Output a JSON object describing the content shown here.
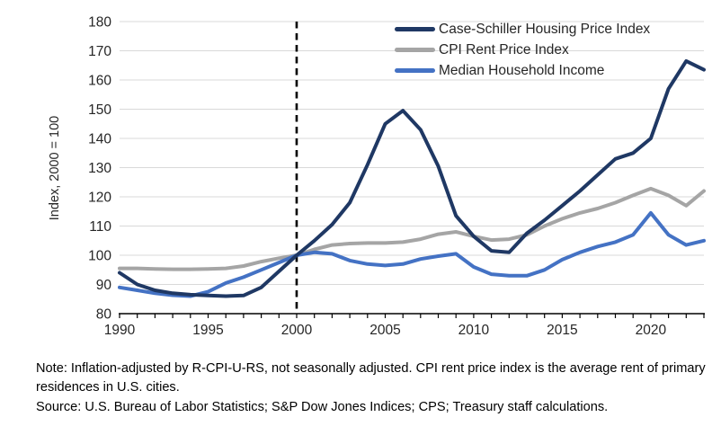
{
  "chart_data": {
    "type": "line",
    "title": "",
    "xlabel": "",
    "ylabel": "Index, 2000 = 100",
    "xlim": [
      1990,
      2023
    ],
    "ylim": [
      80,
      180
    ],
    "x_ticks": [
      1990,
      1995,
      2000,
      2005,
      2010,
      2015,
      2020
    ],
    "x_minor_tick_interval": 1,
    "y_ticks": [
      80,
      90,
      100,
      110,
      120,
      130,
      140,
      150,
      160,
      170,
      180
    ],
    "grid": "horizontal",
    "gridline_color": "#d9d9d9",
    "axis_color": "#000000",
    "reference_line": {
      "x": 2000,
      "style": "dashed",
      "color": "#000000"
    },
    "legend_position": "top-right",
    "years": [
      1990,
      1991,
      1992,
      1993,
      1994,
      1995,
      1996,
      1997,
      1998,
      1999,
      2000,
      2001,
      2002,
      2003,
      2004,
      2005,
      2006,
      2007,
      2008,
      2009,
      2010,
      2011,
      2012,
      2013,
      2014,
      2015,
      2016,
      2017,
      2018,
      2019,
      2020,
      2021,
      2022,
      2023
    ],
    "series": [
      {
        "id": "case-schiller",
        "name": "Case-Schiller Housing Price Index",
        "color": "#1f3864",
        "values": [
          94,
          90,
          88,
          87,
          86.5,
          86.2,
          86,
          86.2,
          89,
          94.5,
          100,
          105,
          110.5,
          118,
          131,
          145,
          149.5,
          143,
          130.5,
          113.5,
          106.5,
          101.5,
          101,
          107.5,
          112,
          117,
          122,
          127.5,
          133,
          135,
          140,
          157,
          166.5,
          163.5
        ]
      },
      {
        "id": "cpi-rent",
        "name": "CPI Rent Price Index",
        "color": "#a5a5a5",
        "values": [
          95.5,
          95.5,
          95.3,
          95.2,
          95.2,
          95.3,
          95.5,
          96.3,
          97.8,
          99,
          100,
          102,
          103.5,
          104,
          104.2,
          104.2,
          104.5,
          105.5,
          107.2,
          108,
          106.5,
          105.2,
          105.5,
          107,
          110,
          112.5,
          114.5,
          116,
          118,
          120.5,
          122.8,
          120.5,
          117,
          122
        ]
      },
      {
        "id": "median-income",
        "name": "Median Household Income",
        "color": "#4472c4",
        "values": [
          89,
          88,
          87,
          86.3,
          86,
          87.5,
          90.5,
          92.5,
          95,
          97.5,
          100,
          101,
          100.5,
          98.2,
          97,
          96.5,
          97,
          98.7,
          99.7,
          100.5,
          96,
          93.5,
          93,
          93,
          95,
          98.5,
          101,
          103,
          104.5,
          107,
          114.5,
          107,
          103.5,
          105
        ]
      }
    ]
  },
  "notes": {
    "note": "Note: Inflation-adjusted by R-CPI-U-RS, not seasonally adjusted. CPI rent price index is the average rent of primary residences in U.S. cities.",
    "source": "Source: U.S. Bureau of Labor Statistics; S&P Dow Jones Indices; CPS; Treasury staff calculations."
  }
}
